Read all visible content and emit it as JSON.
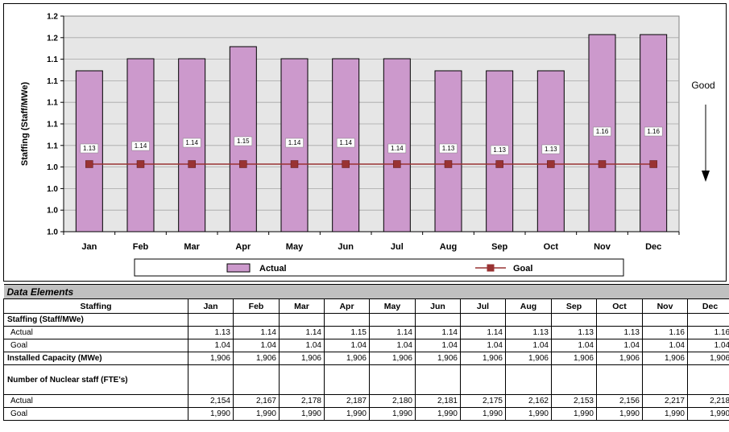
{
  "chart_data": {
    "type": "bar",
    "title": "",
    "ylabel": "Staffing (Staff/MWe)",
    "xlabel": "",
    "categories": [
      "Jan",
      "Feb",
      "Mar",
      "Apr",
      "May",
      "Jun",
      "Jul",
      "Aug",
      "Sep",
      "Oct",
      "Nov",
      "Dec"
    ],
    "ylim": [
      1.0,
      1.2
    ],
    "yticks": [
      "1.0",
      "1.0",
      "1.0",
      "1.0",
      "1.1",
      "1.1",
      "1.1",
      "1.1",
      "1.1",
      "1.2",
      "1.2"
    ],
    "grid": true,
    "series": [
      {
        "name": "Actual",
        "kind": "bar",
        "color": "#cc99cc",
        "values": [
          1.13,
          1.14,
          1.14,
          1.15,
          1.14,
          1.14,
          1.14,
          1.13,
          1.13,
          1.13,
          1.16,
          1.16
        ],
        "labels": [
          "1.13",
          "1.14",
          "1.14",
          "1.15",
          "1.14",
          "1.14",
          "1.14",
          "1.13",
          "1.13",
          "1.13",
          "1.16",
          "1.16"
        ]
      },
      {
        "name": "Goal",
        "kind": "line",
        "color": "#993333",
        "values": [
          1.04,
          1.04,
          1.04,
          1.04,
          1.04,
          1.04,
          1.04,
          1.04,
          1.04,
          1.04,
          1.04,
          1.04
        ]
      }
    ],
    "annotation": "Good",
    "legend_position": "bottom"
  },
  "table": {
    "title": "Data Elements",
    "corner_header": "Staffing",
    "months": [
      "Jan",
      "Feb",
      "Mar",
      "Apr",
      "May",
      "Jun",
      "Jul",
      "Aug",
      "Sep",
      "Oct",
      "Nov",
      "Dec"
    ],
    "staffing_section": "Staffing (Staff/MWe)",
    "staffing_actual_label": "Actual",
    "staffing_actual": [
      "1.13",
      "1.14",
      "1.14",
      "1.15",
      "1.14",
      "1.14",
      "1.14",
      "1.13",
      "1.13",
      "1.13",
      "1.16",
      "1.16"
    ],
    "staffing_goal_label": "Goal",
    "staffing_goal": [
      "1.04",
      "1.04",
      "1.04",
      "1.04",
      "1.04",
      "1.04",
      "1.04",
      "1.04",
      "1.04",
      "1.04",
      "1.04",
      "1.04"
    ],
    "capacity_label": "Installed Capacity (MWe)",
    "capacity": [
      "1,906",
      "1,906",
      "1,906",
      "1,906",
      "1,906",
      "1,906",
      "1,906",
      "1,906",
      "1,906",
      "1,906",
      "1,906",
      "1,906"
    ],
    "nuclear_section": "Number of Nuclear staff (FTE's)",
    "nuclear_actual_label": "Actual",
    "nuclear_actual": [
      "2,154",
      "2,167",
      "2,178",
      "2,187",
      "2,180",
      "2,181",
      "2,175",
      "2,162",
      "2,153",
      "2,156",
      "2,217",
      "2,218"
    ],
    "nuclear_goal_label": "Goal",
    "nuclear_goal": [
      "1,990",
      "1,990",
      "1,990",
      "1,990",
      "1,990",
      "1,990",
      "1,990",
      "1,990",
      "1,990",
      "1,990",
      "1,990",
      "1,990"
    ]
  }
}
